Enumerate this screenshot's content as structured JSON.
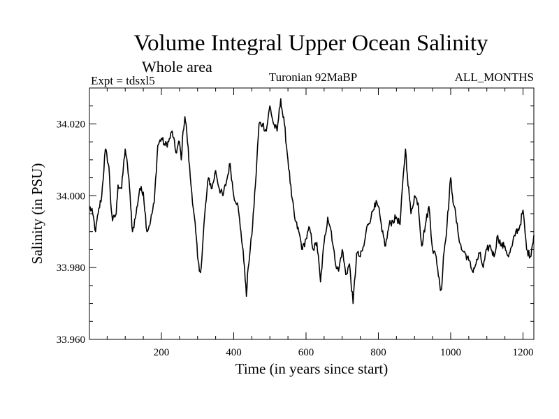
{
  "chart_data": {
    "type": "line",
    "title": "Volume Integral Upper Ocean Salinity",
    "subtitle": "Whole area",
    "annotations": {
      "left": "Expt = tdsxl5",
      "center": "Turonian  92MaBP",
      "right": "ALL_MONTHS"
    },
    "xlabel": "Time (in years since start)",
    "ylabel": "Salinity (in PSU)",
    "xlim": [
      1,
      1230
    ],
    "ylim": [
      33.96,
      34.03
    ],
    "x_ticks": [
      {
        "value": 200,
        "label": "200"
      },
      {
        "value": 400,
        "label": "400"
      },
      {
        "value": 600,
        "label": "600"
      },
      {
        "value": 800,
        "label": "800"
      },
      {
        "value": 1000,
        "label": "1000"
      },
      {
        "value": 1200,
        "label": "1200"
      }
    ],
    "y_ticks": [
      {
        "value": 33.96,
        "label": "33.960"
      },
      {
        "value": 33.98,
        "label": "33.980"
      },
      {
        "value": 34.0,
        "label": "34.000"
      },
      {
        "value": 34.02,
        "label": "34.020"
      }
    ],
    "grid": false,
    "legend": "none",
    "series": [
      {
        "name": "salinity",
        "x": [
          1,
          10,
          18,
          25,
          35,
          45,
          55,
          60,
          65,
          75,
          80,
          90,
          95,
          100,
          110,
          115,
          120,
          130,
          140,
          150,
          160,
          170,
          180,
          190,
          200,
          210,
          220,
          230,
          240,
          250,
          255,
          260,
          265,
          270,
          280,
          290,
          295,
          300,
          305,
          310,
          320,
          330,
          340,
          350,
          360,
          370,
          380,
          390,
          400,
          410,
          420,
          430,
          435,
          440,
          450,
          460,
          470,
          480,
          490,
          500,
          510,
          520,
          530,
          535,
          540,
          550,
          560,
          570,
          580,
          590,
          600,
          610,
          620,
          630,
          640,
          650,
          660,
          670,
          680,
          690,
          700,
          710,
          720,
          730,
          740,
          750,
          760,
          770,
          780,
          790,
          800,
          810,
          820,
          830,
          840,
          850,
          860,
          870,
          875,
          880,
          890,
          900,
          910,
          920,
          930,
          940,
          950,
          960,
          970,
          975,
          980,
          990,
          1000,
          1005,
          1010,
          1020,
          1030,
          1040,
          1050,
          1060,
          1070,
          1080,
          1090,
          1100,
          1110,
          1120,
          1130,
          1140,
          1150,
          1160,
          1170,
          1180,
          1190,
          1200,
          1210,
          1220,
          1230
        ],
        "values": [
          33.997,
          33.995,
          33.99,
          33.995,
          34.0,
          34.013,
          34.008,
          33.998,
          33.993,
          33.995,
          34.003,
          34.002,
          34.008,
          34.013,
          34.005,
          33.997,
          33.99,
          33.995,
          34.002,
          34.001,
          33.99,
          33.993,
          33.998,
          34.014,
          34.016,
          34.014,
          34.015,
          34.018,
          34.012,
          34.015,
          34.01,
          34.018,
          34.022,
          34.018,
          34.005,
          33.995,
          33.99,
          33.983,
          33.979,
          33.98,
          33.995,
          34.005,
          34.002,
          34.007,
          34.002,
          34.0,
          34.004,
          34.009,
          34.0,
          33.998,
          33.99,
          33.98,
          33.972,
          33.98,
          33.989,
          34.003,
          34.02,
          34.02,
          34.018,
          34.025,
          34.02,
          34.018,
          34.027,
          34.023,
          34.02,
          34.01,
          34.0,
          33.993,
          33.99,
          33.985,
          33.988,
          33.991,
          33.985,
          33.987,
          33.976,
          33.987,
          33.994,
          33.99,
          33.982,
          33.979,
          33.985,
          33.978,
          33.981,
          33.97,
          33.984,
          33.983,
          33.986,
          33.992,
          33.994,
          33.998,
          33.997,
          33.99,
          33.986,
          33.992,
          33.993,
          33.994,
          33.992,
          34.007,
          34.013,
          34.006,
          33.995,
          34.0,
          33.998,
          33.986,
          33.992,
          33.997,
          33.985,
          33.983,
          33.975,
          33.974,
          33.983,
          33.992,
          34.005,
          34.0,
          33.997,
          33.99,
          33.985,
          33.984,
          33.982,
          33.979,
          33.981,
          33.984,
          33.98,
          33.985,
          33.986,
          33.983,
          33.989,
          33.986,
          33.986,
          33.983,
          33.986,
          33.99,
          33.991,
          33.996,
          33.985,
          33.983,
          33.989
        ]
      }
    ]
  }
}
